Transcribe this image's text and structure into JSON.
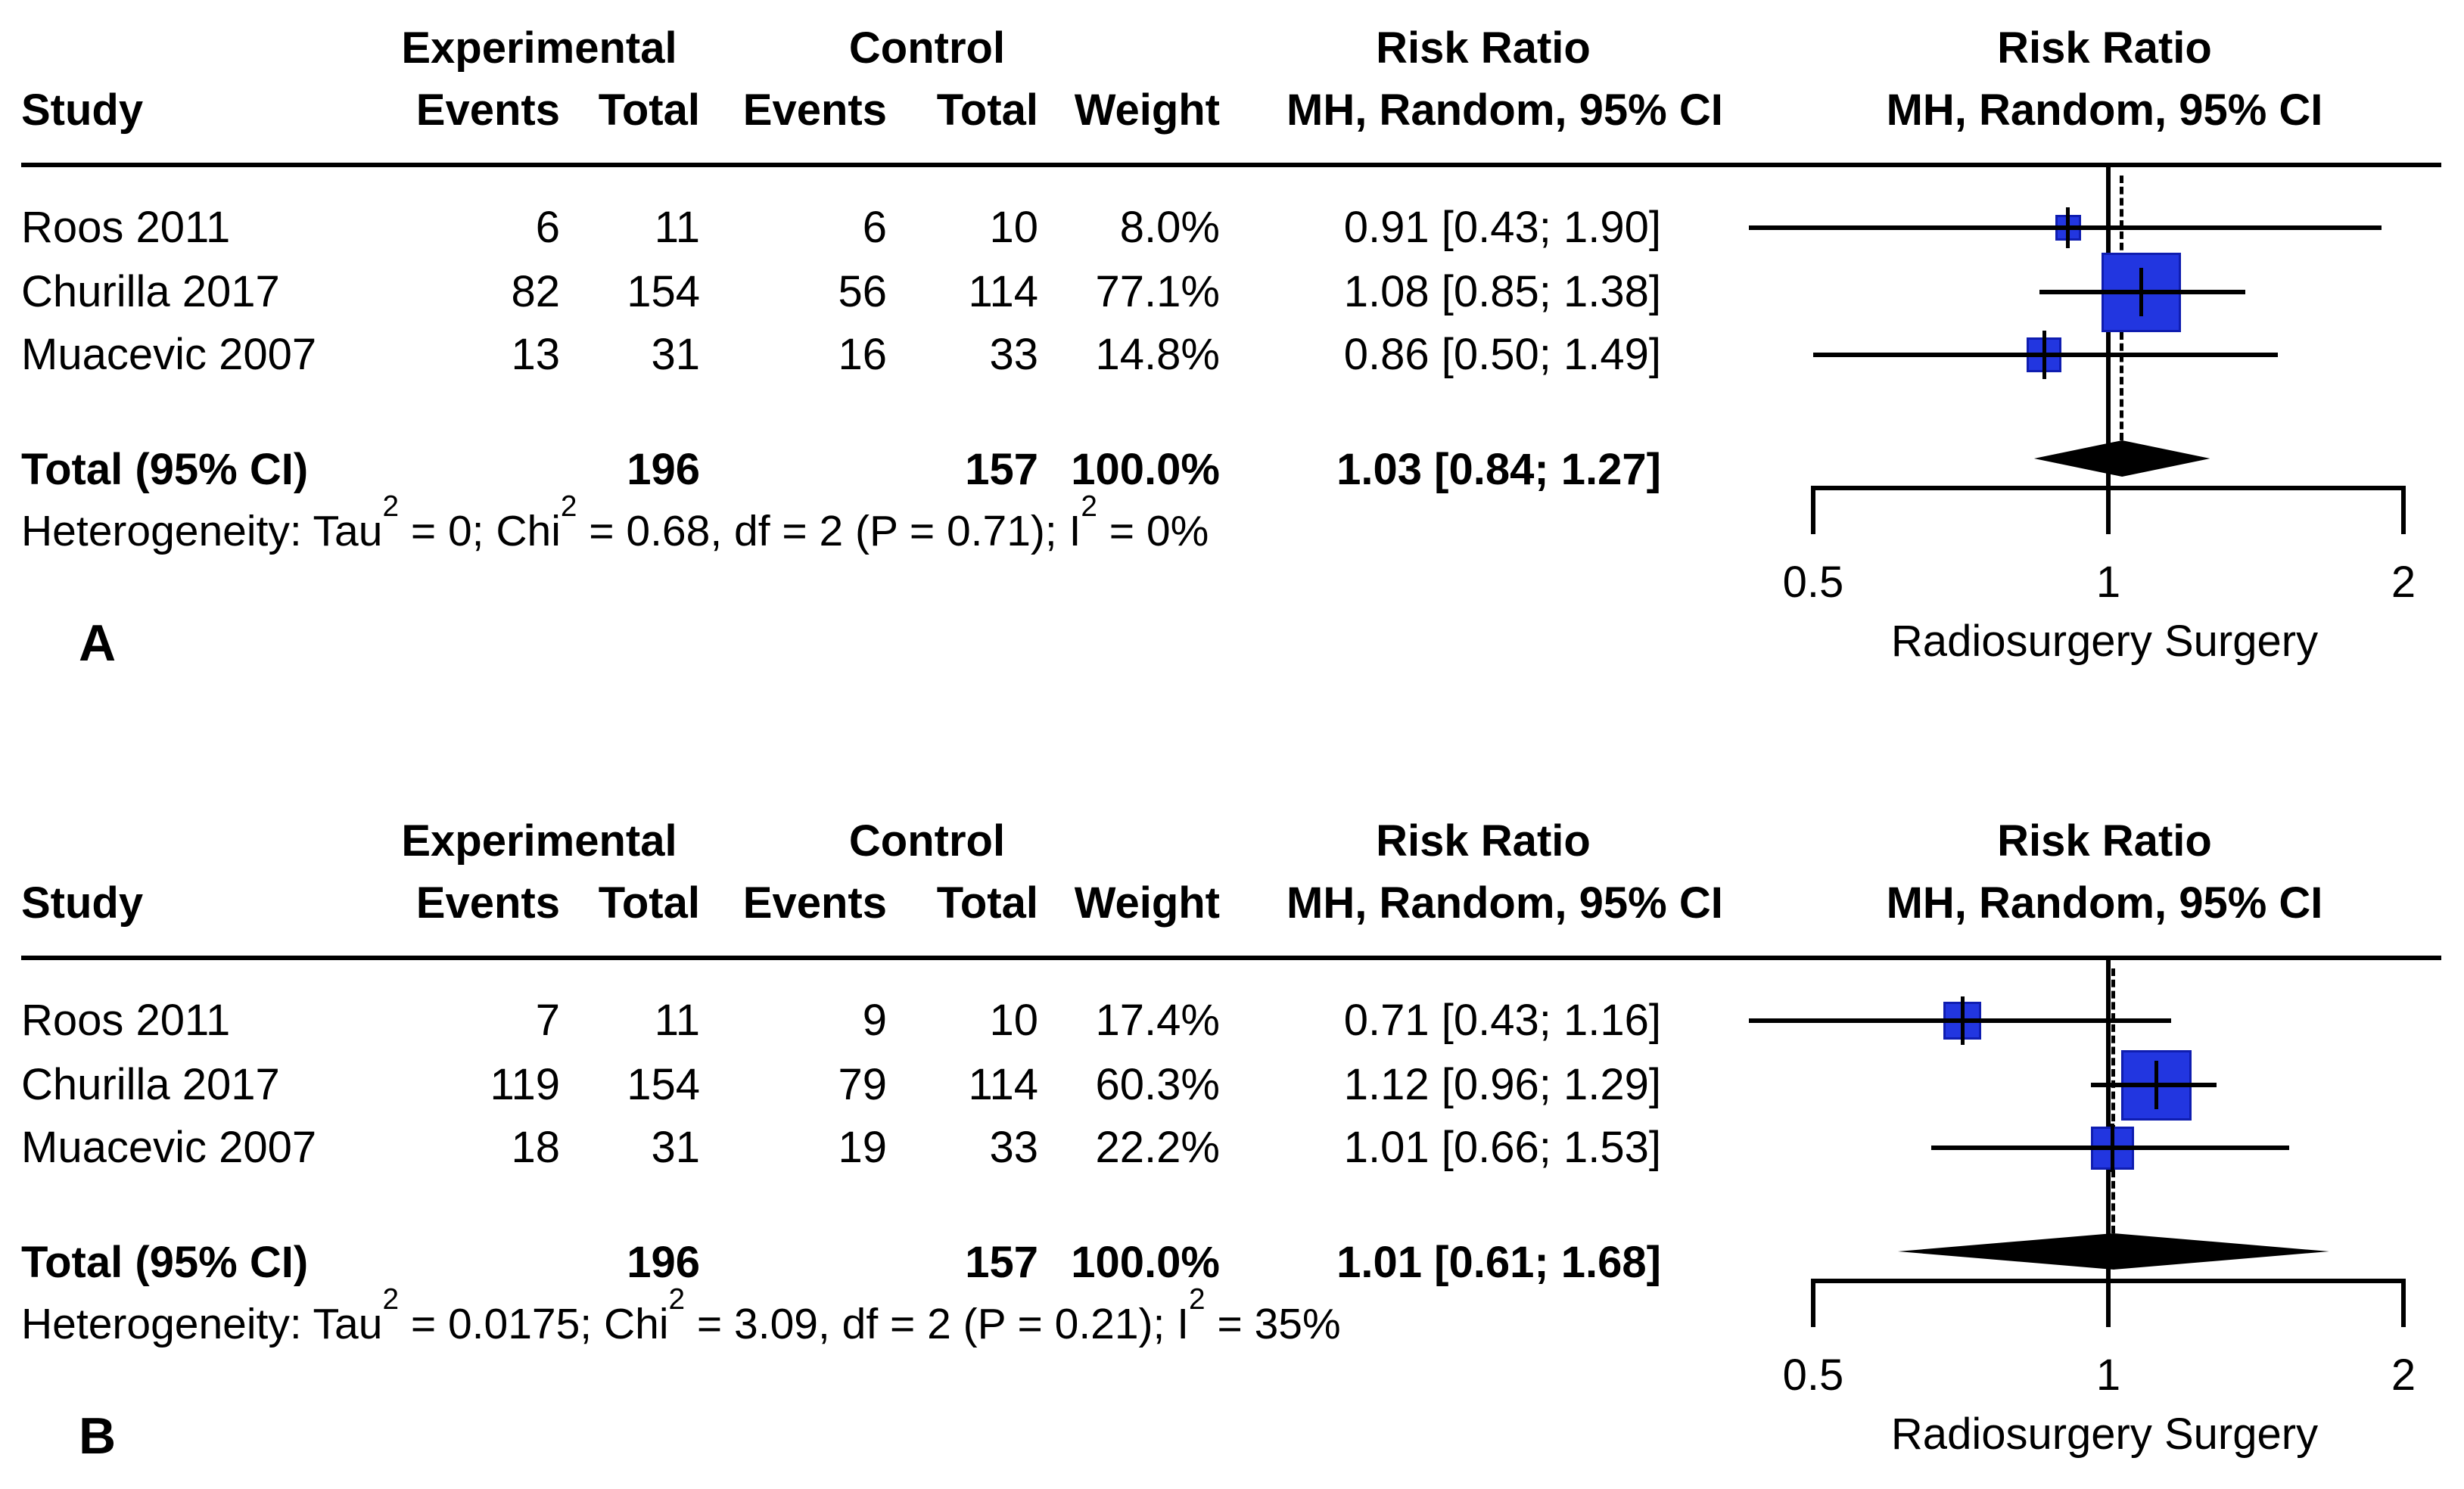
{
  "header": {
    "study": "Study",
    "experimental": "Experimental",
    "control": "Control",
    "events": "Events",
    "total": "Total",
    "weight": "Weight",
    "risk_ratio": "Risk Ratio",
    "method": "MH, Random, 95% CI"
  },
  "panels": [
    {
      "label": "A",
      "rows": [
        {
          "study": "Roos 2011",
          "exp_events": "6",
          "exp_total": "11",
          "ctrl_events": "6",
          "ctrl_total": "10",
          "weight": "8.0%",
          "rr_ci": "0.91 [0.43; 1.90]"
        },
        {
          "study": "Churilla 2017",
          "exp_events": "82",
          "exp_total": "154",
          "ctrl_events": "56",
          "ctrl_total": "114",
          "weight": "77.1%",
          "rr_ci": "1.08 [0.85; 1.38]"
        },
        {
          "study": "Muacevic 2007",
          "exp_events": "13",
          "exp_total": "31",
          "ctrl_events": "16",
          "ctrl_total": "33",
          "weight": "14.8%",
          "rr_ci": "0.86 [0.50; 1.49]"
        }
      ],
      "total": {
        "label": "Total (95% CI)",
        "exp_total": "196",
        "ctrl_total": "157",
        "weight": "100.0%",
        "rr_ci": "1.03 [0.84; 1.27]"
      },
      "heterogeneity": {
        "h1": "Heterogeneity: Tau",
        "s1": "2",
        "h2": " = 0; Chi",
        "s2": "2",
        "h3": " = 0.68, df = 2 (P = 0.71); I",
        "s3": "2",
        "h4": " = 0%"
      },
      "axis": {
        "ticks": [
          "0.5",
          "1",
          "2"
        ],
        "title": "Radiosurgery Surgery"
      }
    },
    {
      "label": "B",
      "rows": [
        {
          "study": "Roos 2011",
          "exp_events": "7",
          "exp_total": "11",
          "ctrl_events": "9",
          "ctrl_total": "10",
          "weight": "17.4%",
          "rr_ci": "0.71 [0.43; 1.16]"
        },
        {
          "study": "Churilla 2017",
          "exp_events": "119",
          "exp_total": "154",
          "ctrl_events": "79",
          "ctrl_total": "114",
          "weight": "60.3%",
          "rr_ci": "1.12 [0.96; 1.29]"
        },
        {
          "study": "Muacevic 2007",
          "exp_events": "18",
          "exp_total": "31",
          "ctrl_events": "19",
          "ctrl_total": "33",
          "weight": "22.2%",
          "rr_ci": "1.01 [0.66; 1.53]"
        }
      ],
      "total": {
        "label": "Total (95% CI)",
        "exp_total": "196",
        "ctrl_total": "157",
        "weight": "100.0%",
        "rr_ci": "1.01 [0.61; 1.68]"
      },
      "heterogeneity": {
        "h1": "Heterogeneity: Tau",
        "s1": "2",
        "h2": " = 0.0175; Chi",
        "s2": "2",
        "h3": " = 3.09, df = 2 (P = 0.21); I",
        "s3": "2",
        "h4": " = 35%"
      },
      "axis": {
        "ticks": [
          "0.5",
          "1",
          "2"
        ],
        "title": "Radiosurgery Surgery"
      }
    }
  ],
  "chart_data": [
    {
      "type": "forest",
      "panel": "A",
      "x_scale": "log",
      "x_ticks": [
        0.5,
        1,
        2
      ],
      "x_label": "Radiosurgery Surgery",
      "null_line": 1,
      "studies": [
        {
          "name": "Roos 2011",
          "estimate": 0.91,
          "lower": 0.43,
          "upper": 1.9,
          "weight_pct": 8.0
        },
        {
          "name": "Churilla 2017",
          "estimate": 1.08,
          "lower": 0.85,
          "upper": 1.38,
          "weight_pct": 77.1
        },
        {
          "name": "Muacevic 2007",
          "estimate": 0.86,
          "lower": 0.5,
          "upper": 1.49,
          "weight_pct": 14.8
        }
      ],
      "pooled": {
        "name": "Total (95% CI)",
        "estimate": 1.03,
        "lower": 0.84,
        "upper": 1.27
      },
      "heterogeneity": {
        "tau2": 0,
        "chi2": 0.68,
        "df": 2,
        "p": 0.71,
        "i2_pct": 0
      },
      "square_color": "#2236e0"
    },
    {
      "type": "forest",
      "panel": "B",
      "x_scale": "log",
      "x_ticks": [
        0.5,
        1,
        2
      ],
      "x_label": "Radiosurgery Surgery",
      "null_line": 1,
      "studies": [
        {
          "name": "Roos 2011",
          "estimate": 0.71,
          "lower": 0.43,
          "upper": 1.16,
          "weight_pct": 17.4
        },
        {
          "name": "Churilla 2017",
          "estimate": 1.12,
          "lower": 0.96,
          "upper": 1.29,
          "weight_pct": 60.3
        },
        {
          "name": "Muacevic 2007",
          "estimate": 1.01,
          "lower": 0.66,
          "upper": 1.53,
          "weight_pct": 22.2
        }
      ],
      "pooled": {
        "name": "Total (95% CI)",
        "estimate": 1.01,
        "lower": 0.61,
        "upper": 1.68
      },
      "heterogeneity": {
        "tau2": 0.0175,
        "chi2": 3.09,
        "df": 2,
        "p": 0.21,
        "i2_pct": 35
      },
      "square_color": "#2236e0"
    }
  ]
}
